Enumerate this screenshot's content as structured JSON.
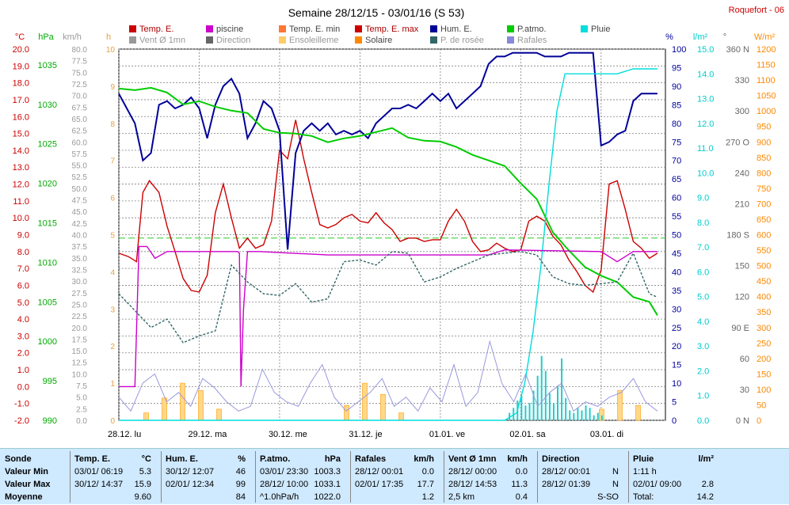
{
  "header": {
    "title": "Semaine 28/12/15 - 03/01/16 (S 53)",
    "station": "Roquefort - 06"
  },
  "legend": [
    {
      "label": "Temp. E.",
      "color": "#cc0000"
    },
    {
      "label": "piscine",
      "color": "#cc00cc"
    },
    {
      "label": "Temp. E. min",
      "color": "#ff7733"
    },
    {
      "label": "Temp. E. max",
      "color": "#cc0000"
    },
    {
      "label": "Hum. E.",
      "color": "#000099"
    },
    {
      "label": "P.atmo.",
      "color": "#00cc00"
    },
    {
      "label": "Pluie",
      "color": "#00dddd"
    },
    {
      "label": "Vent Ø 1mn",
      "color": "#999999"
    },
    {
      "label": "Direction",
      "color": "#666666"
    },
    {
      "label": "Ensoleilleme",
      "color": "#ffcc66"
    },
    {
      "label": "Solaire",
      "color": "#ff8800"
    },
    {
      "label": "P. de rosée",
      "color": "#336666"
    },
    {
      "label": "Rafales",
      "color": "#8888dd"
    }
  ],
  "axes_units": {
    "temp": "°C",
    "press": "hPa",
    "wind": "km/h",
    "sun": "h",
    "hum": "%",
    "rain": "l/m²",
    "dir": "°",
    "solar": "W/m²"
  },
  "chart_data": {
    "type": "line",
    "x_labels": [
      "28.12. lu",
      "29.12. ma",
      "30.12. me",
      "31.12. je",
      "01.01. ve",
      "02.01. sa",
      "03.01. di"
    ],
    "axes": {
      "temp": {
        "min": -2,
        "max": 20,
        "step": 0.5,
        "labels": [
          "-2.0",
          "-1.0",
          "0.0",
          "1.0",
          "2.0",
          "3.0",
          "4.0",
          "5.0",
          "6.0",
          "7.0",
          "8.0",
          "9.0",
          "10.0",
          "11.0",
          "12.0",
          "13.0",
          "14.0",
          "15.0",
          "16.0",
          "17.0",
          "18.0",
          "19.0",
          "20.0"
        ]
      },
      "press": {
        "labels": [
          "990",
          "995",
          "1000",
          "1005",
          "1010",
          "1015",
          "1020",
          "1025",
          "1030",
          "1035"
        ]
      },
      "wind": {
        "labels": [
          "0.0",
          "2.5",
          "5.0",
          "7.5",
          "10.0",
          "12.5",
          "15.0",
          "17.5",
          "20.0",
          "22.5",
          "25.0",
          "27.5",
          "30.0",
          "32.5",
          "35.0",
          "37.5",
          "40.0",
          "42.5",
          "45.0",
          "47.5",
          "50.0",
          "52.5",
          "55.0",
          "57.5",
          "60.0",
          "62.5",
          "65.0",
          "67.5",
          "70.0",
          "72.5",
          "75.0",
          "77.5",
          "80.0"
        ]
      },
      "sun": {
        "labels": [
          "0",
          "1",
          "2",
          "3",
          "4",
          "5",
          "6",
          "7",
          "8",
          "9",
          "10"
        ]
      },
      "hum": {
        "labels": [
          "0",
          "5",
          "10",
          "15",
          "20",
          "25",
          "30",
          "35",
          "40",
          "45",
          "50",
          "55",
          "60",
          "65",
          "70",
          "75",
          "80",
          "85",
          "90",
          "95",
          "100"
        ]
      },
      "rain": {
        "labels": [
          "0.0",
          "1.0",
          "2.0",
          "3.0",
          "4.0",
          "5.0",
          "6.0",
          "7.0",
          "8.0",
          "9.0",
          "10.0",
          "11.0",
          "12.0",
          "13.0",
          "14.0",
          "15.0"
        ]
      },
      "dir": {
        "labels": [
          "0 N",
          "30",
          "60",
          "90 E",
          "120",
          "150",
          "180 S",
          "210",
          "240",
          "270 O",
          "300",
          "330",
          "360 N"
        ]
      },
      "solar": {
        "labels": [
          "0",
          "50",
          "100",
          "150",
          "200",
          "250",
          "300",
          "350",
          "400",
          "450",
          "500",
          "550",
          "600",
          "650",
          "700",
          "750",
          "800",
          "850",
          "900",
          "950",
          "1000",
          "1050",
          "1100",
          "1150",
          "1200"
        ]
      }
    },
    "series": [
      {
        "name": "Temp. E.",
        "axis": "temp",
        "color": "#cc0000",
        "x": [
          0,
          0.12,
          0.22,
          0.3,
          0.38,
          0.5,
          0.6,
          0.7,
          0.8,
          0.9,
          1.0,
          1.1,
          1.2,
          1.3,
          1.4,
          1.5,
          1.6,
          1.7,
          1.8,
          1.9,
          2.0,
          2.1,
          2.2,
          2.3,
          2.4,
          2.5,
          2.6,
          2.7,
          2.8,
          2.9,
          3.0,
          3.1,
          3.2,
          3.3,
          3.4,
          3.5,
          3.6,
          3.7,
          3.8,
          3.9,
          4.0,
          4.1,
          4.2,
          4.3,
          4.4,
          4.5,
          4.6,
          4.7,
          4.8,
          4.9,
          5.0,
          5.1,
          5.2,
          5.3,
          5.4,
          5.5,
          5.6,
          5.7,
          5.8,
          5.9,
          6.0,
          6.1,
          6.2,
          6.3,
          6.4,
          6.5,
          6.6,
          6.7
        ],
        "y": [
          7.9,
          7.7,
          7.4,
          11.5,
          12.2,
          11.5,
          9.5,
          8.0,
          6.4,
          5.7,
          5.6,
          6.6,
          10.3,
          12.0,
          10.0,
          8.2,
          8.8,
          8.2,
          8.4,
          9.8,
          14.0,
          13.5,
          15.8,
          13.5,
          11.5,
          9.6,
          9.4,
          9.6,
          10.0,
          10.2,
          9.8,
          9.7,
          10.3,
          9.7,
          9.3,
          8.6,
          8.8,
          8.8,
          8.6,
          8.7,
          8.7,
          9.8,
          10.5,
          9.8,
          8.6,
          8.0,
          8.1,
          8.5,
          8.2,
          8.0,
          8.1,
          9.8,
          10.1,
          9.8,
          8.9,
          8.4,
          7.5,
          6.8,
          6.0,
          5.6,
          6.9,
          12.0,
          12.2,
          10.5,
          8.6,
          8.2,
          7.6,
          7.9
        ]
      },
      {
        "name": "Hum. E.",
        "axis": "hum",
        "color": "#000099",
        "x": [
          0,
          0.1,
          0.2,
          0.3,
          0.4,
          0.5,
          0.6,
          0.7,
          0.8,
          0.9,
          1.0,
          1.1,
          1.2,
          1.3,
          1.4,
          1.5,
          1.6,
          1.7,
          1.8,
          1.9,
          2.0,
          2.1,
          2.2,
          2.3,
          2.4,
          2.5,
          2.6,
          2.7,
          2.8,
          2.9,
          3.0,
          3.1,
          3.2,
          3.3,
          3.4,
          3.5,
          3.6,
          3.7,
          3.8,
          3.9,
          4.0,
          4.1,
          4.2,
          4.3,
          4.4,
          4.5,
          4.6,
          4.7,
          4.8,
          4.9,
          5.0,
          5.1,
          5.2,
          5.3,
          5.4,
          5.5,
          5.6,
          5.7,
          5.8,
          5.9,
          6.0,
          6.1,
          6.2,
          6.3,
          6.4,
          6.5,
          6.6,
          6.7
        ],
        "y": [
          88,
          84,
          80,
          70,
          72,
          85,
          86,
          84,
          85,
          87,
          84,
          76,
          85,
          90,
          92,
          88,
          76,
          80,
          86,
          84,
          78,
          46,
          72,
          78,
          80,
          78,
          80,
          77,
          78,
          77,
          78,
          76,
          80,
          82,
          84,
          84,
          85,
          84,
          86,
          88,
          86,
          88,
          84,
          86,
          88,
          90,
          96,
          98,
          98,
          99,
          99,
          99,
          99,
          98,
          98,
          98,
          99,
          99,
          99,
          99,
          74,
          75,
          77,
          78,
          86,
          88,
          88,
          88
        ]
      },
      {
        "name": "P.atmo.",
        "axis": "press",
        "color": "#00cc00",
        "x": [
          0,
          0.2,
          0.4,
          0.6,
          0.8,
          1.0,
          1.2,
          1.4,
          1.6,
          1.8,
          2.0,
          2.2,
          2.4,
          2.6,
          2.8,
          3.0,
          3.2,
          3.4,
          3.6,
          3.8,
          4.0,
          4.2,
          4.4,
          4.6,
          4.8,
          5.0,
          5.2,
          5.4,
          5.6,
          5.8,
          6.0,
          6.2,
          6.4,
          6.6,
          6.7
        ],
        "y": [
          1032,
          1031.8,
          1032.1,
          1031.5,
          1030,
          1030.4,
          1029.7,
          1029.2,
          1028.9,
          1026.9,
          1026.4,
          1026.3,
          1026,
          1025.2,
          1025.7,
          1026,
          1026.5,
          1027,
          1025.8,
          1025.4,
          1025.3,
          1024.6,
          1023.6,
          1022.9,
          1022.2,
          1020,
          1018,
          1013.8,
          1011.5,
          1009.4,
          1008.3,
          1007.5,
          1005.6,
          1005,
          1003.3
        ]
      },
      {
        "name": "Pluie",
        "axis": "rain",
        "color": "#00dddd",
        "x": [
          0,
          4.8,
          4.95,
          5.05,
          5.15,
          5.25,
          5.35,
          5.45,
          5.55,
          5.6,
          5.8,
          6.0,
          6.2,
          6.4,
          6.7
        ],
        "y": [
          0,
          0,
          0.3,
          1.5,
          3.5,
          6.2,
          9.5,
          12.5,
          14.0,
          14.0,
          14.0,
          14.0,
          14.0,
          14.2,
          14.2
        ]
      },
      {
        "name": "piscine",
        "axis": "temp",
        "color": "#cc00cc",
        "x": [
          0,
          0.2,
          0.25,
          0.35,
          0.45,
          0.6,
          1.48,
          1.5,
          1.52,
          1.55,
          1.6,
          1.75,
          2.6,
          4.6,
          4.8,
          6.0,
          6.2,
          6.4,
          6.7
        ],
        "y": [
          0,
          0,
          8.3,
          8.3,
          7.6,
          8.0,
          8.0,
          7.9,
          0,
          4.5,
          8.0,
          8.0,
          7.8,
          7.8,
          8.1,
          8.0,
          7.4,
          8.0,
          8.0
        ]
      },
      {
        "name": "P. de rosée",
        "axis": "temp",
        "color": "#336666",
        "x": [
          0,
          0.2,
          0.4,
          0.6,
          0.8,
          1.0,
          1.2,
          1.4,
          1.6,
          1.8,
          2.0,
          2.2,
          2.4,
          2.6,
          2.8,
          3.0,
          3.2,
          3.4,
          3.6,
          3.8,
          4.0,
          4.2,
          4.4,
          4.6,
          4.8,
          5.0,
          5.2,
          5.4,
          5.6,
          5.8,
          6.0,
          6.2,
          6.4,
          6.6,
          6.7
        ],
        "y": [
          5.5,
          4.5,
          3.5,
          4.0,
          2.6,
          3.0,
          3.3,
          7.2,
          6.2,
          5.5,
          5.4,
          6.1,
          5.0,
          5.2,
          7.4,
          7.5,
          7.2,
          8.0,
          7.9,
          6.2,
          6.5,
          7.0,
          7.4,
          7.8,
          7.9,
          8.0,
          7.8,
          6.5,
          6.1,
          6.0,
          6.1,
          6.2,
          7.9,
          5.5,
          5.3
        ]
      }
    ],
    "wind_gusts_kmh": [
      5,
      2,
      8,
      10,
      4,
      6,
      3,
      9,
      7,
      4,
      2,
      3,
      11,
      6,
      4,
      3,
      8,
      12,
      5,
      2,
      4,
      6,
      9,
      3,
      5,
      2,
      7,
      4,
      12,
      3,
      6,
      17,
      8,
      4,
      10,
      3,
      6,
      8,
      2,
      4,
      3,
      5,
      6,
      9,
      4,
      2
    ],
    "sunshine_h": [
      0,
      0.2,
      0.6,
      1.0,
      0.8,
      0.3,
      0,
      0,
      0,
      0,
      0,
      0,
      0.4,
      1.0,
      0.7,
      0.2,
      0,
      0,
      0,
      0,
      0,
      0,
      0,
      0,
      0,
      0,
      0.3,
      0.8,
      0.4,
      0
    ],
    "rain_bars_mm": [
      0.3,
      0.5,
      0.8,
      1.0,
      0.6,
      0.7,
      1.2,
      1.8,
      2.6,
      2.0,
      1.1,
      0.7,
      1.4,
      2.5,
      0.9,
      0.4,
      0.3,
      0.5,
      0.4,
      0.6,
      0.5,
      0.2,
      0.3,
      0.2
    ],
    "reference_line": {
      "axis": "temp",
      "value": 8.8
    }
  },
  "stats": {
    "columns": [
      {
        "title": "Sonde",
        "unit": "",
        "rows": [
          "Valeur Min",
          "Valeur Max",
          "Moyenne"
        ]
      },
      {
        "title": "Temp. E.",
        "unit": "°C",
        "rows": [
          {
            "time": "03/01/ 06:19",
            "value": "5.3"
          },
          {
            "time": "30/12/ 14:37",
            "value": "15.9"
          },
          {
            "time": "",
            "value": "9.60"
          }
        ]
      },
      {
        "title": "Hum. E.",
        "unit": "%",
        "rows": [
          {
            "time": "30/12/ 12:07",
            "value": "46"
          },
          {
            "time": "02/01/ 12:34",
            "value": "99"
          },
          {
            "time": "",
            "value": "84"
          }
        ]
      },
      {
        "title": "P.atmo.",
        "unit": "hPa",
        "rows": [
          {
            "time": "03/01/ 23:30",
            "value": "1003.3"
          },
          {
            "time": "28/12/ 10:00",
            "value": "1033.1"
          },
          {
            "time": "^1.0hPa/h",
            "value": "1022.0"
          }
        ]
      },
      {
        "title": "Rafales",
        "unit": "km/h",
        "rows": [
          {
            "time": "28/12/ 00:01",
            "value": "0.0"
          },
          {
            "time": "02/01/ 17:35",
            "value": "17.7"
          },
          {
            "time": "",
            "value": "1.2"
          }
        ]
      },
      {
        "title": "Vent Ø 1mn",
        "unit": "km/h",
        "rows": [
          {
            "time": "28/12/ 00:00",
            "value": "0.0"
          },
          {
            "time": "28/12/ 14:53",
            "value": "11.3"
          },
          {
            "time": "2,5 km",
            "value": "0.4"
          }
        ]
      },
      {
        "title": "Direction",
        "unit": "",
        "rows": [
          {
            "time": "28/12/ 00:01",
            "value": "N"
          },
          {
            "time": "28/12/ 01:39",
            "value": "N"
          },
          {
            "time": "",
            "value": "S-SO"
          }
        ]
      },
      {
        "title": "Pluie",
        "unit": "l/m²",
        "rows": [
          {
            "time": "1:11 h",
            "value": ""
          },
          {
            "time": "02/01/ 09:00",
            "value": "2.8"
          },
          {
            "time": "Total:",
            "value": "14.2"
          }
        ]
      }
    ]
  }
}
